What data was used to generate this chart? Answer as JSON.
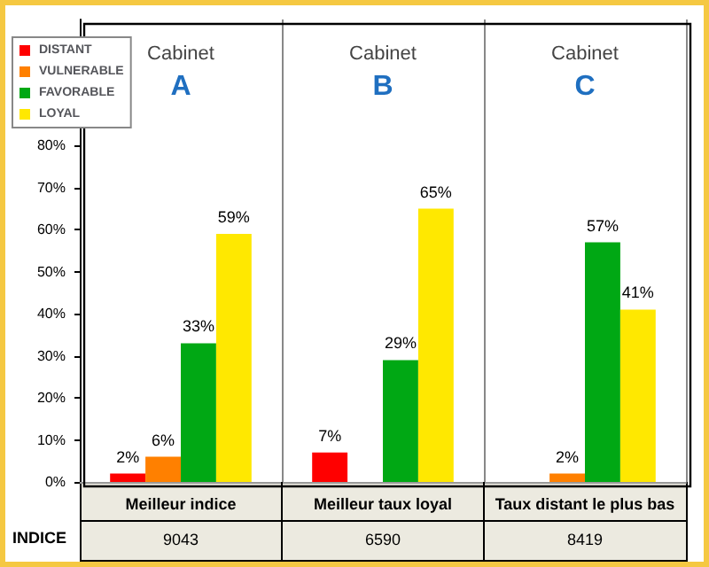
{
  "chart_data": {
    "type": "bar",
    "categories": [
      "Meilleur indice",
      "Meilleur taux loyal",
      "Taux distant le plus bas"
    ],
    "series": [
      {
        "name": "DISTANT",
        "color": "#ff0000",
        "values": [
          2,
          7,
          null
        ],
        "value_labels": [
          "2%",
          "7%",
          null
        ]
      },
      {
        "name": "VULNERABLE",
        "color": "#ff8000",
        "values": [
          6,
          null,
          2
        ],
        "value_labels": [
          "6%",
          null,
          "2%"
        ]
      },
      {
        "name": "FAVORABLE",
        "color": "#00a814",
        "values": [
          33,
          29,
          57
        ],
        "value_labels": [
          "33%",
          "29%",
          "57%"
        ]
      },
      {
        "name": "LOYAL",
        "color": "#ffe800",
        "values": [
          59,
          65,
          41
        ],
        "value_labels": [
          "59%",
          "65%",
          "41%"
        ]
      }
    ],
    "ylim": [
      0,
      110
    ],
    "yticks": [
      {
        "value": 0,
        "label": "0%"
      },
      {
        "value": 10,
        "label": "10%"
      },
      {
        "value": 20,
        "label": "20%"
      },
      {
        "value": 30,
        "label": "30%"
      },
      {
        "value": 40,
        "label": "40%"
      },
      {
        "value": 50,
        "label": "50%"
      },
      {
        "value": 60,
        "label": "60%"
      },
      {
        "value": 70,
        "label": "70%"
      },
      {
        "value": 80,
        "label": "80%"
      }
    ],
    "grid": "x",
    "legend": "top left",
    "annotations": [
      "Cabinet\nA",
      "Cabinet\nB",
      "Cabinet\nC",
      "INDICE",
      "9043",
      "6590",
      "8419"
    ]
  }
}
